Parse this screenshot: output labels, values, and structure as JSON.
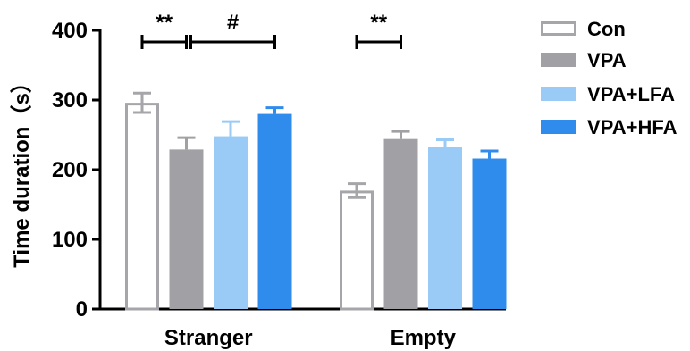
{
  "chart_data": {
    "type": "bar",
    "ylabel": "Time duration（s）",
    "ylim": [
      0,
      400
    ],
    "yticks": [
      0,
      100,
      200,
      300,
      400
    ],
    "categories": [
      "Stranger",
      "Empty"
    ],
    "series": [
      {
        "name": "Con",
        "values": [
          296,
          170
        ],
        "errors": [
          14,
          10
        ],
        "fill": "#ffffff",
        "stroke": "#a6a6aa"
      },
      {
        "name": "VPA",
        "values": [
          229,
          244
        ],
        "errors": [
          17,
          11
        ],
        "fill": "#a1a1a5",
        "stroke": "#a1a1a5"
      },
      {
        "name": "VPA+LFA",
        "values": [
          248,
          232
        ],
        "errors": [
          21,
          11
        ],
        "fill": "#99cbf6",
        "stroke": "#99cbf6"
      },
      {
        "name": "VPA+HFA",
        "values": [
          280,
          216
        ],
        "errors": [
          9,
          11
        ],
        "fill": "#2f8cec",
        "stroke": "#2f8cec"
      }
    ],
    "legend": "right",
    "annotations": [
      {
        "label": "**",
        "category": 0,
        "from_series": 0,
        "to_series": 1
      },
      {
        "label": "#",
        "category": 0,
        "from_series": 1,
        "to_series": 3
      },
      {
        "label": "**",
        "category": 1,
        "from_series": 0,
        "to_series": 1
      }
    ]
  }
}
